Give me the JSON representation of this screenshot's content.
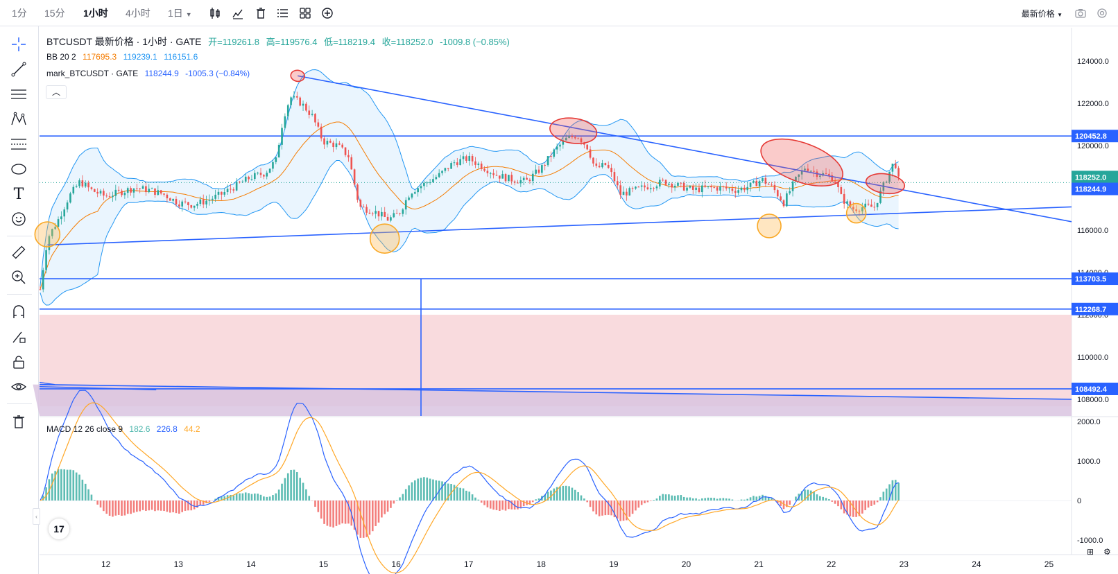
{
  "toolbar": {
    "intervals": [
      "1分",
      "15分",
      "1小时",
      "4小时"
    ],
    "day_interval": "1日",
    "price_source": "最新价格"
  },
  "legend": {
    "symbol": "BTCUSDT 最新价格 · 1小时 · GATE",
    "open": "开=119261.8",
    "high": "高=119576.4",
    "low": "低=118219.4",
    "close": "收=118252.0",
    "change": "-1009.8 (−0.85%)",
    "bb_label": "BB 20 2",
    "bb_basis": "117695.3",
    "bb_upper": "119239.1",
    "bb_lower": "116151.6",
    "mark_label": "mark_BTCUSDT · GATE",
    "mark_value": "118244.9",
    "mark_change": "-1005.3 (−0.84%)",
    "macd_label": "MACD 12 26 close 9",
    "macd_hist": "182.6",
    "macd_line": "226.8",
    "macd_signal": "44.2"
  },
  "price_axis": {
    "ticks": [
      "124000.0",
      "122000.0",
      "120000.0",
      "116000.0",
      "114000.0",
      "112000.0",
      "110000.0",
      "108000.0"
    ],
    "labels": {
      "level_1": "120452.8",
      "last": "118252.0",
      "mark": "118244.9",
      "level_2": "113703.5",
      "level_3": "112268.7",
      "level_4": "108492.4"
    }
  },
  "macd_axis": {
    "ticks": [
      "2000.0",
      "1000.0",
      "0",
      "-1000.0"
    ]
  },
  "time_axis": {
    "ticks": [
      "12",
      "13",
      "14",
      "15",
      "16",
      "17",
      "18",
      "19",
      "20",
      "21",
      "22",
      "23",
      "24",
      "25"
    ]
  },
  "logo_text": "17",
  "colors": {
    "up": "#26a69a",
    "down": "#ef5350",
    "drawing": "#2962ff",
    "bb_basis": "#f57c00",
    "bb_band": "#2196f3",
    "zone": "#f8d7da",
    "zone_purple": "#d9c4e0",
    "macd_line": "#2962ff",
    "macd_signal": "#ffa726"
  },
  "chart_data": {
    "type": "candlestick",
    "x_ticks": [
      "12",
      "13",
      "14",
      "15",
      "16",
      "17",
      "18",
      "19",
      "20",
      "21",
      "22",
      "23",
      "24",
      "25"
    ],
    "y_ticks": [
      124000,
      122000,
      120000,
      116000,
      114000,
      112000,
      110000,
      108000
    ],
    "horizontal_levels": [
      120452.8,
      113703.5,
      112268.7,
      108492.4
    ],
    "last_price": 118252.0,
    "mark_price": 118244.9,
    "ohlc_last": {
      "open": 119261.8,
      "high": 119576.4,
      "low": 118219.4,
      "close": 118252.0
    },
    "bollinger": {
      "length": 20,
      "mult": 2,
      "basis": 117695.3,
      "upper": 119239.1,
      "lower": 116151.6
    },
    "macd": {
      "fast": 12,
      "slow": 26,
      "source": "close",
      "signal": 9,
      "histogram": 182.6,
      "macd": 226.8,
      "signal_value": 44.2
    },
    "macd_y_ticks": [
      2000,
      1000,
      0,
      -1000
    ],
    "close_path": [
      [
        11.1,
        113200
      ],
      [
        11.2,
        115600
      ],
      [
        11.35,
        116500
      ],
      [
        11.5,
        117600
      ],
      [
        11.65,
        118300
      ],
      [
        11.8,
        117900
      ],
      [
        12.0,
        117600
      ],
      [
        12.2,
        117800
      ],
      [
        12.4,
        118000
      ],
      [
        12.6,
        117900
      ],
      [
        12.8,
        117700
      ],
      [
        13.0,
        117300
      ],
      [
        13.2,
        117200
      ],
      [
        13.4,
        117400
      ],
      [
        13.6,
        117700
      ],
      [
        13.8,
        118100
      ],
      [
        14.0,
        118500
      ],
      [
        14.2,
        118700
      ],
      [
        14.35,
        119300
      ],
      [
        14.45,
        121300
      ],
      [
        14.55,
        122300
      ],
      [
        14.7,
        122000
      ],
      [
        14.85,
        121400
      ],
      [
        15.0,
        120200
      ],
      [
        15.2,
        120000
      ],
      [
        15.35,
        119500
      ],
      [
        15.5,
        117100
      ],
      [
        15.7,
        116900
      ],
      [
        15.9,
        116500
      ],
      [
        16.05,
        116800
      ],
      [
        16.2,
        117800
      ],
      [
        16.4,
        118200
      ],
      [
        16.6,
        118600
      ],
      [
        16.8,
        119200
      ],
      [
        17.0,
        119400
      ],
      [
        17.2,
        119000
      ],
      [
        17.4,
        118600
      ],
      [
        17.6,
        118400
      ],
      [
        17.8,
        118300
      ],
      [
        18.0,
        118900
      ],
      [
        18.2,
        119800
      ],
      [
        18.35,
        120300
      ],
      [
        18.5,
        120500
      ],
      [
        18.65,
        119900
      ],
      [
        18.75,
        118900
      ],
      [
        18.9,
        119100
      ],
      [
        19.0,
        118500
      ],
      [
        19.1,
        117700
      ],
      [
        19.3,
        117900
      ],
      [
        19.5,
        118100
      ],
      [
        19.7,
        118300
      ],
      [
        19.9,
        118100
      ],
      [
        20.1,
        117900
      ],
      [
        20.3,
        118000
      ],
      [
        20.5,
        118000
      ],
      [
        20.7,
        117900
      ],
      [
        20.9,
        118100
      ],
      [
        21.05,
        118400
      ],
      [
        21.2,
        118000
      ],
      [
        21.35,
        117300
      ],
      [
        21.5,
        118300
      ],
      [
        21.65,
        119000
      ],
      [
        21.8,
        118700
      ],
      [
        21.95,
        118600
      ],
      [
        22.05,
        118400
      ],
      [
        22.15,
        117500
      ],
      [
        22.3,
        117000
      ],
      [
        22.45,
        117100
      ],
      [
        22.6,
        117100
      ],
      [
        22.7,
        117900
      ],
      [
        22.8,
        118700
      ],
      [
        22.88,
        119300
      ],
      [
        22.94,
        118252
      ]
    ],
    "drawings": {
      "triangle_upper": {
        "from": [
          14.65,
          123300
        ],
        "to": [
          25.3,
          116400
        ]
      },
      "triangle_lower": {
        "from": [
          11.2,
          115300
        ],
        "to": [
          25.3,
          117100
        ]
      },
      "lower_channel": {
        "from": [
          11.0,
          108700
        ],
        "to": [
          25.3,
          108000
        ]
      },
      "vertical_line_x": 16.35,
      "marked_highs": [
        [
          14.65,
          123300
        ],
        [
          18.45,
          120700
        ],
        [
          21.6,
          119200
        ],
        [
          22.75,
          118200
        ]
      ],
      "marked_lows": [
        [
          11.2,
          115800
        ],
        [
          15.85,
          115600
        ],
        [
          21.15,
          116200
        ],
        [
          22.35,
          116800
        ]
      ],
      "support_zone": [
        108000,
        112000
      ]
    }
  }
}
